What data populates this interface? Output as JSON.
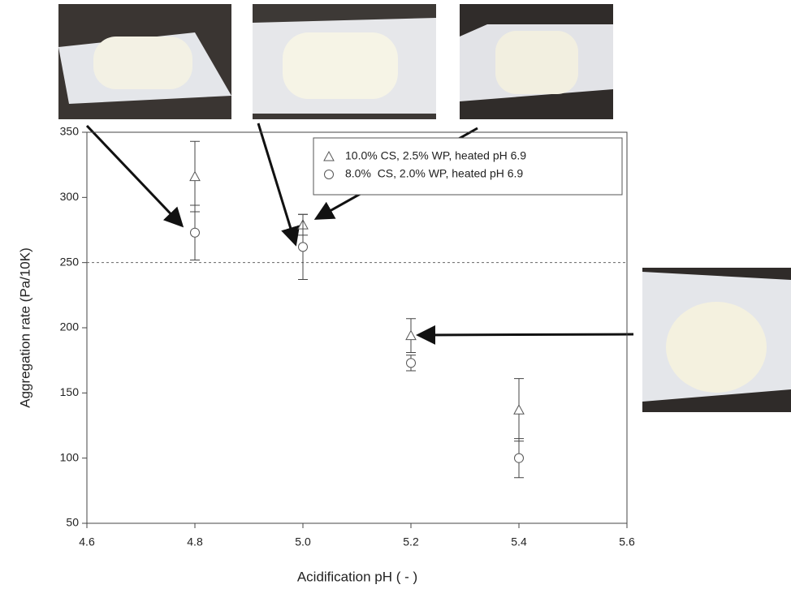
{
  "chart_data": {
    "type": "scatter",
    "x_label": "Acidification pH ( - )",
    "y_label": "Aggregation rate (Pa/10K)",
    "xlim": [
      4.6,
      5.6
    ],
    "xticks": [
      4.6,
      4.8,
      {
        "value": 5,
        "label": "5.0"
      },
      5.2,
      5.4,
      5.6
    ],
    "ylim": [
      50,
      350
    ],
    "yticks": [
      50,
      100,
      150,
      200,
      250,
      300,
      350
    ],
    "reference_line": 250,
    "series": [
      {
        "name": "10.0% CS, 2.5% WP, heated pH 6.9",
        "marker": "triangle",
        "color": "#555555",
        "x": [
          4.8,
          5,
          5.2,
          5.4
        ],
        "values": [
          316,
          279,
          194,
          137
        ],
        "error": [
          27,
          8,
          13,
          24
        ]
      },
      {
        "name": "8.0%  CS, 2.0% WP, heated pH 6.9",
        "marker": "circle",
        "color": "#555555",
        "x": [
          4.8,
          5,
          5.2,
          5.4
        ],
        "values": [
          273,
          262,
          173,
          100
        ],
        "error": [
          21,
          25,
          6,
          15
        ]
      }
    ]
  }
}
